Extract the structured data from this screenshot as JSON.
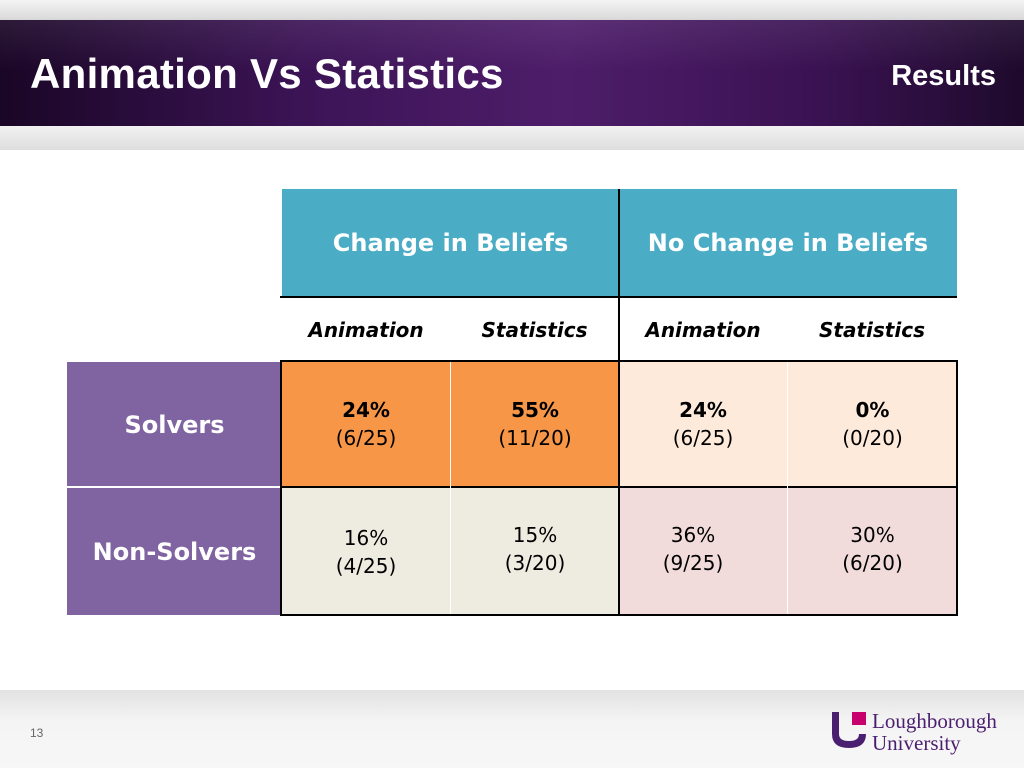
{
  "slide": {
    "title": "Animation Vs Statistics",
    "section": "Results",
    "page_number": "13"
  },
  "logo": {
    "line1": "Loughborough",
    "line2": "University",
    "colors": {
      "purple": "#4b1f6f",
      "magenta": "#c8006e"
    }
  },
  "table": {
    "group_headers": [
      "Change in Beliefs",
      "No Change in Beliefs"
    ],
    "column_headers": [
      "Animation",
      "Statistics",
      "Animation",
      "Statistics"
    ],
    "rows": [
      {
        "label": "Solvers",
        "cells": [
          {
            "pct": "24%",
            "frac": "(6/25)"
          },
          {
            "pct": "55%",
            "frac": "(11/20)"
          },
          {
            "pct": "24%",
            "frac": "(6/25)"
          },
          {
            "pct": "0%",
            "frac": "(0/20)"
          }
        ]
      },
      {
        "label": "Non-Solvers",
        "cells": [
          {
            "pct": "16%",
            "frac": "(4/25)"
          },
          {
            "pct": "15%",
            "frac": "(3/20)"
          },
          {
            "pct": "36%",
            "frac": "(9/25)"
          },
          {
            "pct": "30%",
            "frac": "(6/20)"
          }
        ]
      }
    ],
    "colors": {
      "header": "#4bacc6",
      "row_label": "#8064a2",
      "solvers_change": "#f79646",
      "solvers_no_change": "#fdeada",
      "nonsolvers_change": "#eeece1",
      "nonsolvers_no_change": "#f2dcdb"
    }
  }
}
